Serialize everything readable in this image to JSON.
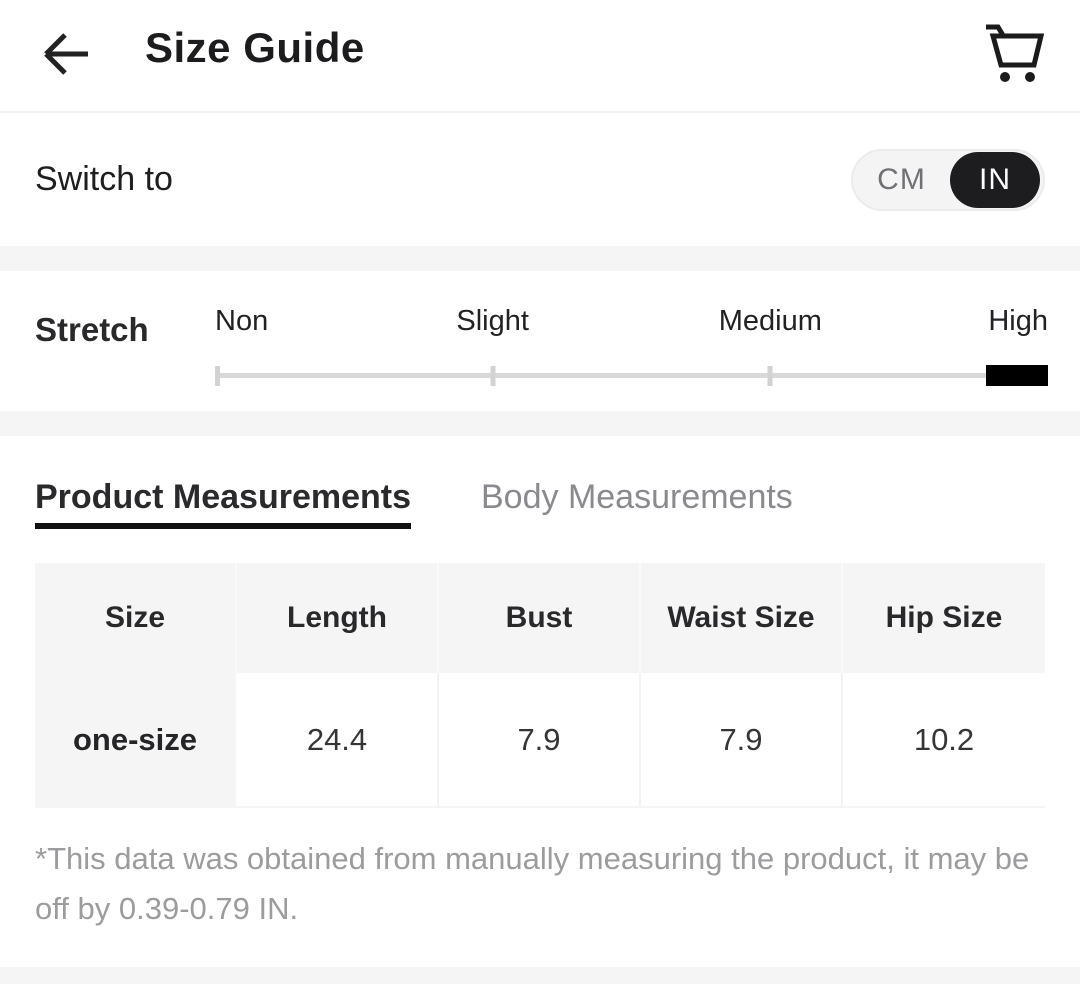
{
  "header": {
    "title": "Size Guide"
  },
  "unit_switch": {
    "label": "Switch to",
    "options": [
      "CM",
      "IN"
    ],
    "selected": "IN"
  },
  "stretch": {
    "label": "Stretch",
    "levels": [
      "Non",
      "Slight",
      "Medium",
      "High"
    ],
    "selected": "High"
  },
  "tabs": [
    {
      "label": "Product Measurements",
      "active": true
    },
    {
      "label": "Body Measurements",
      "active": false
    }
  ],
  "measurements_table": {
    "columns": [
      "Size",
      "Length",
      "Bust",
      "Waist Size",
      "Hip Size"
    ],
    "rows": [
      [
        "one-size",
        "24.4",
        "7.9",
        "7.9",
        "10.2"
      ]
    ]
  },
  "footnote": "*This data was obtained from manually measuring the product, it may be off by 0.39-0.79 IN.",
  "icons": [
    "back-arrow-icon",
    "cart-icon"
  ],
  "colors": {
    "toggle_active_bg": "#1d1d1f",
    "toggle_bg": "#f4f4f5",
    "section_band": "#f5f5f6",
    "slider_track": "#d9d9da",
    "slider_indicator": "#000000",
    "tab_underline": "#111111",
    "table_header_bg": "#f5f5f6",
    "muted_text": "#9c9c9e"
  }
}
